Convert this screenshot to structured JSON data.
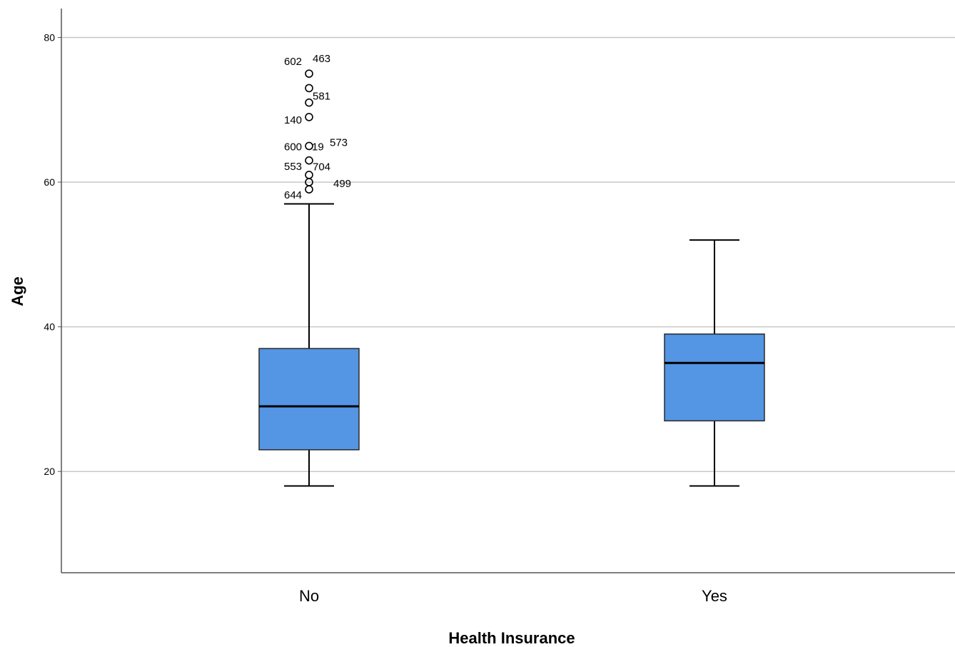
{
  "chart_data": {
    "type": "boxplot",
    "xlabel": "Health Insurance",
    "ylabel": "Age",
    "ylim": [
      6,
      84
    ],
    "y_ticks": [
      20,
      40,
      60,
      80
    ],
    "grid": true,
    "colors": {
      "box_fill": "#5495e4",
      "box_stroke": "#2b2b2b",
      "grid": "#c8c8c8",
      "axis": "#555555"
    },
    "categories": [
      "No",
      "Yes"
    ],
    "boxes": [
      {
        "category": "No",
        "whisker_low": 18,
        "q1": 23,
        "median": 29,
        "q3": 37,
        "whisker_high": 57,
        "outliers": [
          {
            "value": 75,
            "label": "602"
          },
          {
            "value": 75,
            "label": "463"
          },
          {
            "value": 73,
            "label": ""
          },
          {
            "value": 71,
            "label": "581"
          },
          {
            "value": 69,
            "label": "140"
          },
          {
            "value": 65,
            "label": "600"
          },
          {
            "value": 65,
            "label": "19"
          },
          {
            "value": 65,
            "label": "573"
          },
          {
            "value": 63,
            "label": "704"
          },
          {
            "value": 61,
            "label": "553"
          },
          {
            "value": 60,
            "label": "499"
          },
          {
            "value": 59,
            "label": "644"
          }
        ]
      },
      {
        "category": "Yes",
        "whisker_low": 18,
        "q1": 27,
        "median": 35,
        "q3": 39,
        "whisker_high": 52,
        "outliers": []
      }
    ]
  }
}
